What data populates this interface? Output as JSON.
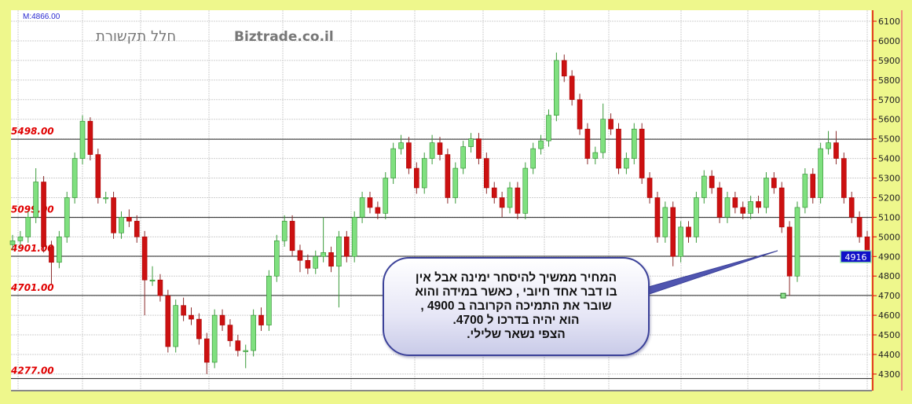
{
  "header": {
    "measure_label": "M:4866.00",
    "title_hebrew": "חלל תקשורת",
    "watermark": "Biztrade.co.il"
  },
  "colors": {
    "up": "#7fe07f",
    "down": "#cc1111",
    "level_label": "#e00000",
    "axis_line": "#e00000",
    "background": "#eef78c",
    "callout_border": "#3b4199"
  },
  "callout": {
    "lines": [
      "המחיר  ממשיך  להיסחר ימינה  אבל אין",
      "בו דבר  אחד  חיובי , כאשר  במידה והוא",
      "שובר  את התמיכה  הקרובה  ב  4900 ,",
      "הוא יהיה בדרכו ל 4700.",
      "הצפי נשאר  שלילי."
    ]
  },
  "chart_data": {
    "type": "candlestick",
    "ylim": [
      4250,
      6130
    ],
    "yticks": [
      4300,
      4400,
      4500,
      4600,
      4700,
      4800,
      4900,
      5000,
      5100,
      5200,
      5300,
      5400,
      5500,
      5600,
      5700,
      5800,
      5900,
      6000,
      6100
    ],
    "grid": true,
    "last_price": "4916",
    "levels": [
      {
        "label": "5498.00",
        "value": 5498
      },
      {
        "label": "5099.00",
        "value": 5099
      },
      {
        "label": "4901.00",
        "value": 4901
      },
      {
        "label": "4701.00",
        "value": 4701
      },
      {
        "label": "4277.00",
        "value": 4277
      }
    ],
    "marker_value": 4700,
    "candles_ohlc": [
      [
        4960,
        5010,
        4930,
        4980
      ],
      [
        4980,
        5030,
        4950,
        5000
      ],
      [
        5000,
        5130,
        4970,
        5100
      ],
      [
        5100,
        5350,
        5070,
        5280
      ],
      [
        5280,
        5310,
        4920,
        4950
      ],
      [
        4950,
        4980,
        4760,
        4870
      ],
      [
        4870,
        5030,
        4840,
        5000
      ],
      [
        5000,
        5230,
        4970,
        5200
      ],
      [
        5200,
        5430,
        5170,
        5400
      ],
      [
        5400,
        5620,
        5370,
        5590
      ],
      [
        5590,
        5610,
        5390,
        5420
      ],
      [
        5420,
        5450,
        5170,
        5200
      ],
      [
        5200,
        5230,
        5170,
        5200
      ],
      [
        5200,
        5230,
        4990,
        5020
      ],
      [
        5020,
        5130,
        4990,
        5100
      ],
      [
        5100,
        5140,
        5050,
        5080
      ],
      [
        5080,
        5110,
        4970,
        5000
      ],
      [
        5000,
        5030,
        4600,
        4780
      ],
      [
        4780,
        4850,
        4750,
        4780
      ],
      [
        4780,
        4810,
        4670,
        4700
      ],
      [
        4700,
        4730,
        4410,
        4440
      ],
      [
        4440,
        4680,
        4410,
        4650
      ],
      [
        4650,
        4690,
        4570,
        4600
      ],
      [
        4600,
        4640,
        4550,
        4580
      ],
      [
        4580,
        4610,
        4450,
        4480
      ],
      [
        4480,
        4510,
        4300,
        4360
      ],
      [
        4360,
        4630,
        4330,
        4600
      ],
      [
        4600,
        4630,
        4520,
        4550
      ],
      [
        4550,
        4580,
        4440,
        4470
      ],
      [
        4470,
        4500,
        4390,
        4420
      ],
      [
        4420,
        4450,
        4330,
        4420
      ],
      [
        4420,
        4630,
        4390,
        4600
      ],
      [
        4600,
        4640,
        4520,
        4550
      ],
      [
        4550,
        4830,
        4520,
        4800
      ],
      [
        4800,
        5010,
        4770,
        4980
      ],
      [
        4980,
        5110,
        4950,
        5080
      ],
      [
        5080,
        5110,
        4900,
        4930
      ],
      [
        4930,
        4960,
        4820,
        4880
      ],
      [
        4880,
        4910,
        4810,
        4840
      ],
      [
        4840,
        4930,
        4810,
        4900
      ],
      [
        4900,
        5100,
        4870,
        4920
      ],
      [
        4920,
        4950,
        4820,
        4850
      ],
      [
        4850,
        5030,
        4640,
        5000
      ],
      [
        5000,
        5030,
        4870,
        4900
      ],
      [
        4900,
        5130,
        4870,
        5100
      ],
      [
        5100,
        5230,
        5070,
        5200
      ],
      [
        5200,
        5230,
        5120,
        5150
      ],
      [
        5150,
        5180,
        5090,
        5120
      ],
      [
        5120,
        5330,
        5090,
        5300
      ],
      [
        5300,
        5480,
        5270,
        5450
      ],
      [
        5450,
        5520,
        5420,
        5480
      ],
      [
        5480,
        5510,
        5320,
        5350
      ],
      [
        5350,
        5380,
        5220,
        5250
      ],
      [
        5250,
        5430,
        5220,
        5400
      ],
      [
        5400,
        5520,
        5370,
        5480
      ],
      [
        5480,
        5510,
        5390,
        5420
      ],
      [
        5420,
        5450,
        5170,
        5200
      ],
      [
        5200,
        5380,
        5170,
        5350
      ],
      [
        5350,
        5490,
        5320,
        5460
      ],
      [
        5460,
        5530,
        5430,
        5500
      ],
      [
        5500,
        5530,
        5370,
        5400
      ],
      [
        5400,
        5430,
        5220,
        5250
      ],
      [
        5250,
        5280,
        5170,
        5200
      ],
      [
        5200,
        5230,
        5100,
        5150
      ],
      [
        5150,
        5280,
        5120,
        5250
      ],
      [
        5250,
        5280,
        5090,
        5120
      ],
      [
        5120,
        5380,
        5090,
        5350
      ],
      [
        5350,
        5480,
        5320,
        5450
      ],
      [
        5450,
        5520,
        5420,
        5490
      ],
      [
        5490,
        5650,
        5460,
        5620
      ],
      [
        5620,
        5940,
        5590,
        5900
      ],
      [
        5900,
        5930,
        5790,
        5820
      ],
      [
        5820,
        5850,
        5670,
        5700
      ],
      [
        5700,
        5730,
        5520,
        5550
      ],
      [
        5550,
        5580,
        5370,
        5400
      ],
      [
        5400,
        5460,
        5370,
        5430
      ],
      [
        5430,
        5680,
        5400,
        5600
      ],
      [
        5600,
        5630,
        5520,
        5550
      ],
      [
        5550,
        5580,
        5320,
        5350
      ],
      [
        5350,
        5430,
        5320,
        5400
      ],
      [
        5400,
        5580,
        5370,
        5550
      ],
      [
        5550,
        5580,
        5270,
        5300
      ],
      [
        5300,
        5330,
        5170,
        5200
      ],
      [
        5200,
        5230,
        4970,
        5000
      ],
      [
        5000,
        5180,
        4970,
        5150
      ],
      [
        5150,
        5180,
        4850,
        4900
      ],
      [
        4900,
        5080,
        4870,
        5050
      ],
      [
        5050,
        5080,
        4970,
        5000
      ],
      [
        5000,
        5230,
        4970,
        5200
      ],
      [
        5200,
        5340,
        5170,
        5310
      ],
      [
        5310,
        5340,
        5220,
        5250
      ],
      [
        5250,
        5280,
        5070,
        5100
      ],
      [
        5100,
        5230,
        5070,
        5200
      ],
      [
        5200,
        5230,
        5120,
        5150
      ],
      [
        5150,
        5180,
        5090,
        5120
      ],
      [
        5120,
        5210,
        5090,
        5180
      ],
      [
        5180,
        5210,
        5120,
        5150
      ],
      [
        5150,
        5330,
        5120,
        5300
      ],
      [
        5300,
        5330,
        5220,
        5250
      ],
      [
        5250,
        5280,
        5020,
        5050
      ],
      [
        5050,
        5080,
        4700,
        4800
      ],
      [
        4800,
        5180,
        4770,
        5150
      ],
      [
        5150,
        5350,
        5120,
        5320
      ],
      [
        5320,
        5350,
        5170,
        5200
      ],
      [
        5200,
        5480,
        5170,
        5450
      ],
      [
        5450,
        5540,
        5420,
        5480
      ],
      [
        5480,
        5540,
        5370,
        5400
      ],
      [
        5400,
        5430,
        5170,
        5200
      ],
      [
        5200,
        5230,
        5070,
        5100
      ],
      [
        5100,
        5130,
        4970,
        5000
      ],
      [
        5000,
        5030,
        4890,
        4916
      ]
    ]
  }
}
